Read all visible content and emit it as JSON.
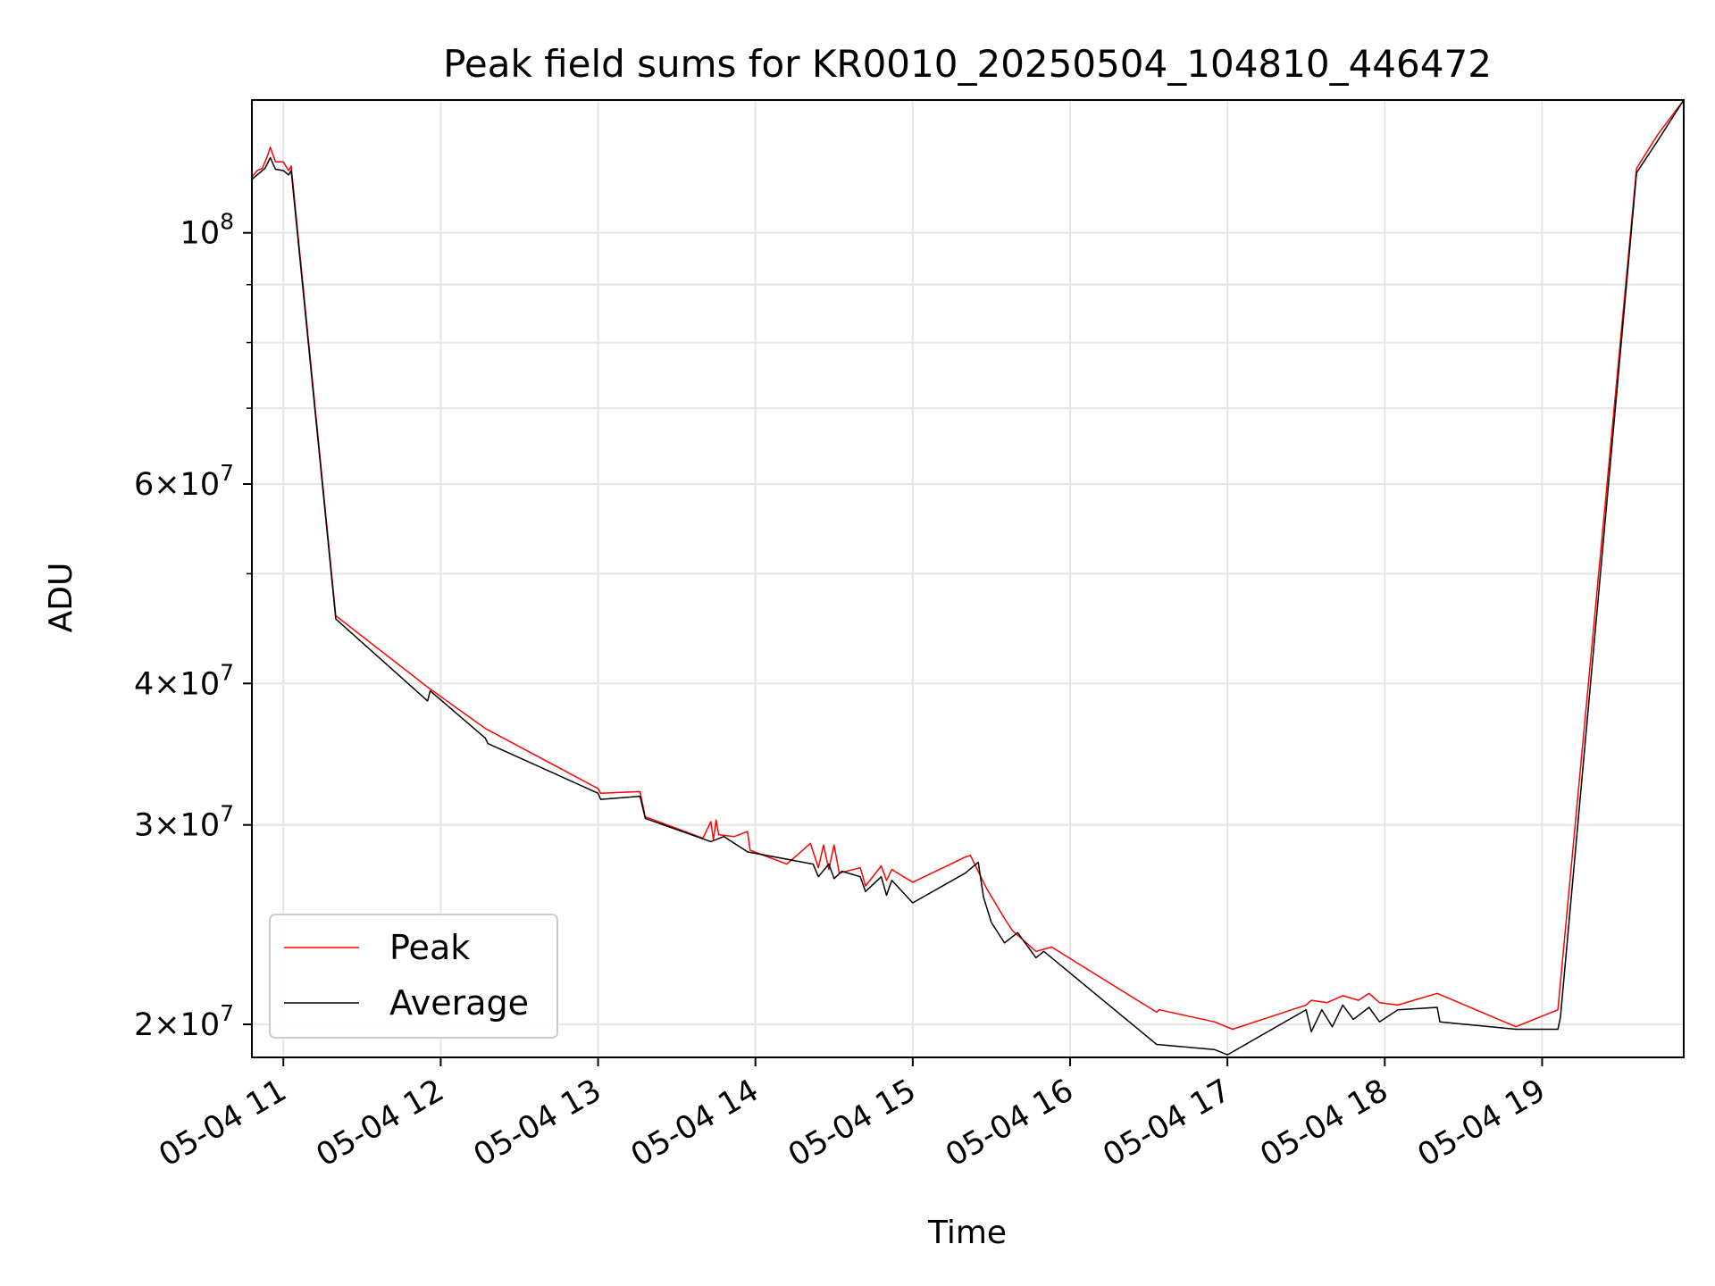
{
  "chart_data": {
    "type": "line",
    "title": "Peak field sums for KR0010_20250504_104810_446472",
    "xlabel": "Time",
    "ylabel": "ADU",
    "y_scale": "log",
    "grid": true,
    "legend_position": "lower-left",
    "xlim": [
      "2025-05-04T10:48",
      "2025-05-04T19:54"
    ],
    "ylim": [
      18700000,
      131000000
    ],
    "x_ticks": [
      {
        "value": "2025-05-04T11:00",
        "label": "05-04 11"
      },
      {
        "value": "2025-05-04T12:00",
        "label": "05-04 12"
      },
      {
        "value": "2025-05-04T13:00",
        "label": "05-04 13"
      },
      {
        "value": "2025-05-04T14:00",
        "label": "05-04 14"
      },
      {
        "value": "2025-05-04T15:00",
        "label": "05-04 15"
      },
      {
        "value": "2025-05-04T16:00",
        "label": "05-04 16"
      },
      {
        "value": "2025-05-04T17:00",
        "label": "05-04 17"
      },
      {
        "value": "2025-05-04T18:00",
        "label": "05-04 18"
      },
      {
        "value": "2025-05-04T19:00",
        "label": "05-04 19"
      }
    ],
    "y_ticks": [
      {
        "value": 100000000,
        "base": "10",
        "exp": "8"
      },
      {
        "value": 60000000,
        "base": "6×10",
        "exp": "7"
      },
      {
        "value": 40000000,
        "base": "4×10",
        "exp": "7"
      },
      {
        "value": 30000000,
        "base": "3×10",
        "exp": "7"
      },
      {
        "value": 20000000,
        "base": "2×10",
        "exp": "7"
      }
    ],
    "y_minor_ticks": [
      50000000,
      70000000,
      80000000,
      90000000
    ],
    "series": [
      {
        "name": "Peak",
        "color": "#ff0000",
        "points": [
          [
            "2025-05-04T10:48",
            112000000
          ],
          [
            "2025-05-04T10:50",
            113500000
          ],
          [
            "2025-05-04T10:52",
            114000000
          ],
          [
            "2025-05-04T10:54",
            117000000
          ],
          [
            "2025-05-04T10:55",
            119000000
          ],
          [
            "2025-05-04T10:57",
            115500000
          ],
          [
            "2025-05-04T11:00",
            115500000
          ],
          [
            "2025-05-04T11:02",
            113500000
          ],
          [
            "2025-05-04T11:03",
            114500000
          ],
          [
            "2025-05-04T11:20",
            45900000
          ],
          [
            "2025-05-04T11:55",
            39700000
          ],
          [
            "2025-05-04T12:17",
            36500000
          ],
          [
            "2025-05-04T13:00",
            32300000
          ],
          [
            "2025-05-04T13:01",
            32000000
          ],
          [
            "2025-05-04T13:16",
            32100000
          ],
          [
            "2025-05-04T13:18",
            30500000
          ],
          [
            "2025-05-04T13:40",
            29200000
          ],
          [
            "2025-05-04T13:43",
            30200000
          ],
          [
            "2025-05-04T13:44",
            29100000
          ],
          [
            "2025-05-04T13:45",
            30300000
          ],
          [
            "2025-05-04T13:46",
            29400000
          ],
          [
            "2025-05-04T13:52",
            29300000
          ],
          [
            "2025-05-04T13:57",
            29600000
          ],
          [
            "2025-05-04T13:58",
            28500000
          ],
          [
            "2025-05-04T14:12",
            27700000
          ],
          [
            "2025-05-04T14:21",
            28900000
          ],
          [
            "2025-05-04T14:24",
            27500000
          ],
          [
            "2025-05-04T14:26",
            28800000
          ],
          [
            "2025-05-04T14:28",
            27400000
          ],
          [
            "2025-05-04T14:30",
            28800000
          ],
          [
            "2025-05-04T14:32",
            27200000
          ],
          [
            "2025-05-04T14:40",
            27500000
          ],
          [
            "2025-05-04T14:42",
            26500000
          ],
          [
            "2025-05-04T14:48",
            27600000
          ],
          [
            "2025-05-04T14:50",
            26800000
          ],
          [
            "2025-05-04T14:52",
            27400000
          ],
          [
            "2025-05-04T15:00",
            26700000
          ],
          [
            "2025-05-04T15:20",
            28100000
          ],
          [
            "2025-05-04T15:22",
            28200000
          ],
          [
            "2025-05-04T15:28",
            26400000
          ],
          [
            "2025-05-04T15:35",
            24800000
          ],
          [
            "2025-05-04T15:38",
            24200000
          ],
          [
            "2025-05-04T15:47",
            23200000
          ],
          [
            "2025-05-04T15:53",
            23400000
          ],
          [
            "2025-05-04T16:33",
            20500000
          ],
          [
            "2025-05-04T16:34",
            20600000
          ],
          [
            "2025-05-04T16:55",
            20100000
          ],
          [
            "2025-05-04T17:02",
            19800000
          ],
          [
            "2025-05-04T17:30",
            20800000
          ],
          [
            "2025-05-04T17:32",
            21000000
          ],
          [
            "2025-05-04T17:38",
            20900000
          ],
          [
            "2025-05-04T17:44",
            21200000
          ],
          [
            "2025-05-04T17:50",
            21000000
          ],
          [
            "2025-05-04T17:54",
            21300000
          ],
          [
            "2025-05-04T17:58",
            20900000
          ],
          [
            "2025-05-04T18:05",
            20800000
          ],
          [
            "2025-05-04T18:20",
            21300000
          ],
          [
            "2025-05-04T18:50",
            19900000
          ],
          [
            "2025-05-04T19:06",
            20600000
          ],
          [
            "2025-05-04T19:36",
            114000000
          ],
          [
            "2025-05-04T19:44",
            122000000
          ],
          [
            "2025-05-04T19:54",
            131000000
          ]
        ]
      },
      {
        "name": "Average",
        "color": "#000000",
        "points": [
          [
            "2025-05-04T10:48",
            111500000
          ],
          [
            "2025-05-04T10:50",
            112500000
          ],
          [
            "2025-05-04T10:53",
            114000000
          ],
          [
            "2025-05-04T10:55",
            116500000
          ],
          [
            "2025-05-04T10:57",
            113800000
          ],
          [
            "2025-05-04T11:00",
            113500000
          ],
          [
            "2025-05-04T11:02",
            112500000
          ],
          [
            "2025-05-04T11:03",
            113500000
          ],
          [
            "2025-05-04T11:20",
            45600000
          ],
          [
            "2025-05-04T11:55",
            38600000
          ],
          [
            "2025-05-04T11:56",
            39400000
          ],
          [
            "2025-05-04T12:17",
            35800000
          ],
          [
            "2025-05-04T12:18",
            35400000
          ],
          [
            "2025-05-04T13:00",
            32000000
          ],
          [
            "2025-05-04T13:01",
            31600000
          ],
          [
            "2025-05-04T13:16",
            31800000
          ],
          [
            "2025-05-04T13:18",
            30400000
          ],
          [
            "2025-05-04T13:43",
            29000000
          ],
          [
            "2025-05-04T13:48",
            29300000
          ],
          [
            "2025-05-04T13:57",
            28400000
          ],
          [
            "2025-05-04T14:22",
            27700000
          ],
          [
            "2025-05-04T14:24",
            27000000
          ],
          [
            "2025-05-04T14:28",
            27700000
          ],
          [
            "2025-05-04T14:30",
            26900000
          ],
          [
            "2025-05-04T14:33",
            27300000
          ],
          [
            "2025-05-04T14:40",
            27000000
          ],
          [
            "2025-05-04T14:42",
            26200000
          ],
          [
            "2025-05-04T14:48",
            27000000
          ],
          [
            "2025-05-04T14:50",
            26000000
          ],
          [
            "2025-05-04T14:52",
            26800000
          ],
          [
            "2025-05-04T15:00",
            25600000
          ],
          [
            "2025-05-04T15:20",
            27200000
          ],
          [
            "2025-05-04T15:25",
            27800000
          ],
          [
            "2025-05-04T15:27",
            25900000
          ],
          [
            "2025-05-04T15:30",
            24600000
          ],
          [
            "2025-05-04T15:35",
            23600000
          ],
          [
            "2025-05-04T15:40",
            24100000
          ],
          [
            "2025-05-04T15:47",
            22900000
          ],
          [
            "2025-05-04T15:50",
            23200000
          ],
          [
            "2025-05-04T16:33",
            19200000
          ],
          [
            "2025-05-04T16:55",
            19000000
          ],
          [
            "2025-05-04T17:00",
            18800000
          ],
          [
            "2025-05-04T17:30",
            20600000
          ],
          [
            "2025-05-04T17:32",
            19700000
          ],
          [
            "2025-05-04T17:36",
            20600000
          ],
          [
            "2025-05-04T17:40",
            19900000
          ],
          [
            "2025-05-04T17:44",
            20800000
          ],
          [
            "2025-05-04T17:48",
            20200000
          ],
          [
            "2025-05-04T17:54",
            20700000
          ],
          [
            "2025-05-04T17:58",
            20100000
          ],
          [
            "2025-05-04T18:05",
            20600000
          ],
          [
            "2025-05-04T18:20",
            20700000
          ],
          [
            "2025-05-04T18:21",
            20100000
          ],
          [
            "2025-05-04T18:50",
            19800000
          ],
          [
            "2025-05-04T19:06",
            19800000
          ],
          [
            "2025-05-04T19:07",
            20300000
          ],
          [
            "2025-05-04T19:36",
            113000000
          ],
          [
            "2025-05-04T19:44",
            120500000
          ],
          [
            "2025-05-04T19:54",
            131000000
          ]
        ]
      }
    ]
  }
}
